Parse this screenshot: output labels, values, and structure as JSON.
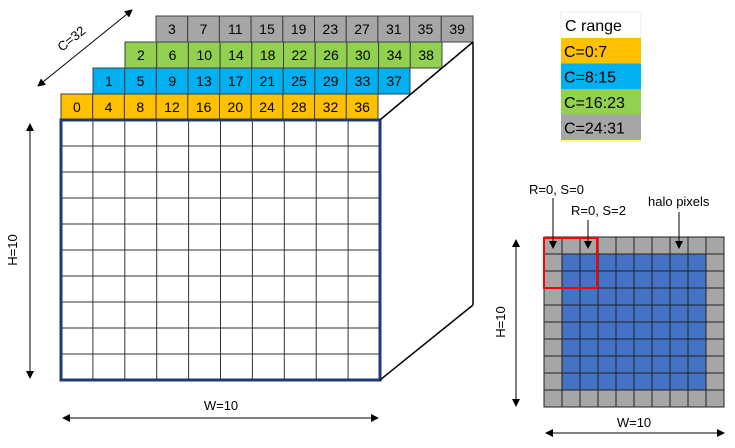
{
  "colors": {
    "orange": "#FFC000",
    "blue": "#00B0F0",
    "green": "#92D050",
    "gray": "#A6A6A6",
    "halo_blue": "#4472C4",
    "frame": "#1F3A7A",
    "red": "#FF0000"
  },
  "tensor": {
    "channel_rows": [
      {
        "color": "gray",
        "values": [
          "3",
          "7",
          "11",
          "15",
          "19",
          "23",
          "27",
          "31",
          "35",
          "39"
        ]
      },
      {
        "color": "green",
        "values": [
          "2",
          "6",
          "10",
          "14",
          "18",
          "22",
          "26",
          "30",
          "34",
          "38"
        ]
      },
      {
        "color": "blue",
        "values": [
          "1",
          "5",
          "9",
          "13",
          "17",
          "21",
          "25",
          "29",
          "33",
          "37"
        ]
      },
      {
        "color": "orange",
        "values": [
          "0",
          "4",
          "8",
          "12",
          "16",
          "20",
          "24",
          "28",
          "32",
          "36"
        ]
      }
    ],
    "c_label": "C=32",
    "h_label": "H=10",
    "w_label": "W=10"
  },
  "legend": {
    "title": "C range",
    "items": [
      {
        "label": "C=0:7",
        "color": "orange"
      },
      {
        "label": "C=8:15",
        "color": "blue"
      },
      {
        "label": "C=16:23",
        "color": "green"
      },
      {
        "label": "C=24:31",
        "color": "gray"
      }
    ]
  },
  "halo": {
    "h_label": "H=10",
    "w_label": "W=10",
    "label_r0s0": "R=0, S=0",
    "label_r0s2": "R=0, S=2",
    "label_halo": "halo pixels"
  }
}
